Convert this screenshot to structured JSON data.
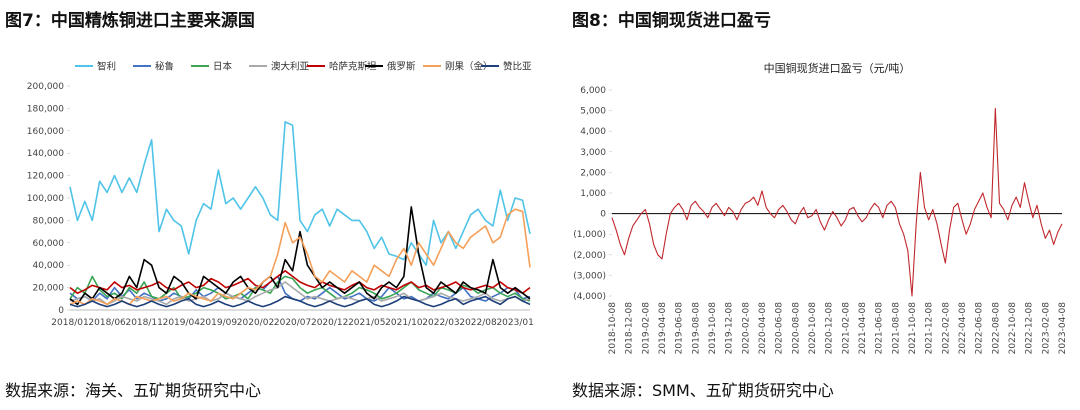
{
  "chart_data": [
    {
      "type": "line",
      "title": "图7：中国精炼铜进口主要来源国",
      "source": "数据来源：海关、五矿期货研究中心",
      "legend": "top",
      "grid": false,
      "categories": [
        "2018/01",
        null,
        null,
        null,
        null,
        "2018/06",
        null,
        null,
        null,
        null,
        "2018/11",
        null,
        null,
        null,
        null,
        "2019/04",
        null,
        null,
        null,
        null,
        "2019/09",
        null,
        null,
        null,
        null,
        "2020/02",
        null,
        null,
        null,
        null,
        "2020/07",
        null,
        null,
        null,
        null,
        "2020/12",
        null,
        null,
        null,
        null,
        "2021/05",
        null,
        null,
        null,
        null,
        "2021/10",
        null,
        null,
        null,
        null,
        "2022/03",
        null,
        null,
        null,
        null,
        "2022/08",
        null,
        null,
        null,
        null,
        "2023/01",
        null,
        null
      ],
      "ylim": [
        0,
        200000
      ],
      "yticks": [
        0,
        {
          "value": 20000,
          "label": "20,000"
        },
        {
          "value": 40000,
          "label": "40,000"
        },
        {
          "value": 60000,
          "label": "60,000"
        },
        {
          "value": 80000,
          "label": "80,000"
        },
        {
          "value": 100000,
          "label": "100,000"
        },
        {
          "value": 120000,
          "label": "120,000"
        },
        {
          "value": 140000,
          "label": "140,000"
        },
        {
          "value": 160000,
          "label": "160,000"
        },
        {
          "value": 180000,
          "label": "180,000"
        },
        {
          "value": 200000,
          "label": "200,000"
        }
      ],
      "series": [
        {
          "name": "智利",
          "color": "#4fc3e8",
          "values": [
            110000,
            80000,
            97000,
            80000,
            115000,
            105000,
            120000,
            105000,
            118000,
            105000,
            130000,
            152000,
            70000,
            90000,
            80000,
            75000,
            50000,
            80000,
            95000,
            90000,
            125000,
            95000,
            100000,
            90000,
            100000,
            110000,
            100000,
            85000,
            80000,
            168000,
            165000,
            80000,
            70000,
            85000,
            90000,
            75000,
            90000,
            85000,
            80000,
            80000,
            70000,
            55000,
            65000,
            50000,
            48000,
            45000,
            60000,
            50000,
            40000,
            80000,
            60000,
            70000,
            55000,
            70000,
            85000,
            90000,
            80000,
            75000,
            107000,
            80000,
            100000,
            98000,
            68000
          ]
        },
        {
          "name": "秘鲁",
          "color": "#4472c4",
          "values": [
            15000,
            10000,
            12000,
            8000,
            15000,
            10000,
            20000,
            12000,
            18000,
            10000,
            15000,
            12000,
            8000,
            10000,
            15000,
            12000,
            10000,
            18000,
            12000,
            15000,
            20000,
            15000,
            12000,
            10000,
            15000,
            20000,
            18000,
            25000,
            30000,
            15000,
            10000,
            8000,
            12000,
            10000,
            15000,
            20000,
            15000,
            10000,
            12000,
            15000,
            10000,
            8000,
            12000,
            20000,
            15000,
            10000,
            12000,
            8000,
            10000,
            15000,
            12000,
            10000,
            15000,
            20000,
            12000,
            10000,
            8000,
            12000,
            15000,
            20000,
            18000,
            10000,
            12000
          ]
        },
        {
          "name": "日本",
          "color": "#3aa655",
          "values": [
            10000,
            20000,
            15000,
            30000,
            18000,
            12000,
            15000,
            10000,
            20000,
            15000,
            25000,
            12000,
            10000,
            15000,
            20000,
            10000,
            12000,
            15000,
            20000,
            18000,
            15000,
            10000,
            12000,
            15000,
            10000,
            20000,
            18000,
            15000,
            25000,
            30000,
            28000,
            20000,
            15000,
            18000,
            20000,
            15000,
            10000,
            12000,
            15000,
            20000,
            18000,
            15000,
            10000,
            12000,
            15000,
            20000,
            25000,
            18000,
            15000,
            12000,
            20000,
            18000,
            15000,
            22000,
            20000,
            15000,
            18000,
            20000,
            15000,
            12000,
            15000,
            10000,
            8000
          ]
        },
        {
          "name": "澳大利亚",
          "color": "#aaaaaa",
          "values": [
            8000,
            10000,
            12000,
            8000,
            10000,
            5000,
            8000,
            12000,
            10000,
            8000,
            12000,
            10000,
            8000,
            5000,
            10000,
            12000,
            8000,
            10000,
            12000,
            8000,
            10000,
            15000,
            12000,
            10000,
            8000,
            12000,
            15000,
            18000,
            20000,
            25000,
            20000,
            15000,
            10000,
            12000,
            10000,
            8000,
            10000,
            12000,
            10000,
            8000,
            10000,
            12000,
            8000,
            10000,
            12000,
            15000,
            10000,
            8000,
            10000,
            12000,
            15000,
            12000,
            10000,
            8000,
            10000,
            12000,
            15000,
            10000,
            8000,
            10000,
            12000,
            8000,
            10000
          ]
        },
        {
          "name": "哈萨克斯坦",
          "color": "#c00000",
          "values": [
            20000,
            15000,
            18000,
            22000,
            20000,
            18000,
            25000,
            20000,
            22000,
            18000,
            20000,
            22000,
            25000,
            20000,
            18000,
            22000,
            25000,
            20000,
            22000,
            28000,
            25000,
            20000,
            22000,
            25000,
            28000,
            22000,
            20000,
            25000,
            30000,
            35000,
            30000,
            25000,
            22000,
            20000,
            25000,
            22000,
            20000,
            18000,
            22000,
            25000,
            20000,
            18000,
            22000,
            20000,
            18000,
            22000,
            25000,
            20000,
            22000,
            18000,
            20000,
            22000,
            25000,
            20000,
            18000,
            20000,
            22000,
            20000,
            25000,
            20000,
            18000,
            15000,
            20000
          ]
        },
        {
          "name": "俄罗斯",
          "color": "#000000",
          "values": [
            10000,
            5000,
            15000,
            10000,
            20000,
            15000,
            10000,
            15000,
            30000,
            20000,
            45000,
            40000,
            20000,
            15000,
            30000,
            25000,
            15000,
            10000,
            30000,
            25000,
            20000,
            15000,
            25000,
            30000,
            20000,
            15000,
            25000,
            30000,
            20000,
            45000,
            35000,
            70000,
            40000,
            30000,
            20000,
            25000,
            20000,
            15000,
            20000,
            25000,
            15000,
            10000,
            20000,
            25000,
            20000,
            30000,
            92000,
            50000,
            20000,
            15000,
            25000,
            20000,
            15000,
            25000,
            20000,
            18000,
            15000,
            45000,
            20000,
            15000,
            20000,
            15000,
            10000
          ]
        },
        {
          "name": "刚果（金）",
          "color": "#f5a05a",
          "values": [
            5000,
            8000,
            5000,
            10000,
            8000,
            5000,
            10000,
            8000,
            5000,
            12000,
            10000,
            8000,
            10000,
            12000,
            8000,
            10000,
            15000,
            12000,
            10000,
            8000,
            15000,
            12000,
            10000,
            15000,
            20000,
            18000,
            25000,
            30000,
            50000,
            78000,
            60000,
            65000,
            50000,
            30000,
            25000,
            35000,
            30000,
            25000,
            35000,
            30000,
            25000,
            40000,
            35000,
            30000,
            45000,
            55000,
            40000,
            60000,
            50000,
            40000,
            55000,
            70000,
            60000,
            55000,
            65000,
            70000,
            75000,
            60000,
            65000,
            85000,
            90000,
            88000,
            38000
          ]
        },
        {
          "name": "赞比亚",
          "color": "#1f3f7a",
          "values": [
            5000,
            3000,
            5000,
            8000,
            5000,
            3000,
            5000,
            8000,
            5000,
            3000,
            5000,
            8000,
            5000,
            3000,
            5000,
            8000,
            10000,
            5000,
            3000,
            5000,
            8000,
            5000,
            3000,
            5000,
            8000,
            5000,
            3000,
            5000,
            8000,
            12000,
            10000,
            8000,
            5000,
            3000,
            5000,
            8000,
            5000,
            3000,
            5000,
            8000,
            10000,
            5000,
            3000,
            5000,
            8000,
            12000,
            10000,
            8000,
            5000,
            3000,
            5000,
            8000,
            10000,
            5000,
            8000,
            10000,
            12000,
            8000,
            5000,
            10000,
            12000,
            8000,
            5000
          ]
        }
      ]
    },
    {
      "type": "line",
      "title": "图8：中国铜现货进口盈亏",
      "subtitle": "中国铜现货进口盈亏（元/吨）",
      "source": "数据来源：SMM、五矿期货研究中心",
      "grid": false,
      "zero_line": true,
      "color": "#c0282d",
      "categories": [
        "2018-10-08",
        null,
        null,
        null,
        "2018-12-08",
        null,
        null,
        null,
        "2019-02-08",
        null,
        null,
        null,
        "2019-04-08",
        null,
        null,
        null,
        "2019-06-08",
        null,
        null,
        null,
        "2019-08-08",
        null,
        null,
        null,
        "2019-10-08",
        null,
        null,
        null,
        "2019-12-08",
        null,
        null,
        null,
        "2020-02-08",
        null,
        null,
        null,
        "2020-04-08",
        null,
        null,
        null,
        "2020-06-08",
        null,
        null,
        null,
        "2020-08-08",
        null,
        null,
        null,
        "2020-10-08",
        null,
        null,
        null,
        "2020-12-08",
        null,
        null,
        null,
        "2021-02-08",
        null,
        null,
        null,
        "2021-04-08",
        null,
        null,
        null,
        "2021-06-08",
        null,
        null,
        null,
        "2021-08-08",
        null,
        null,
        null,
        "2021-10-08",
        null,
        null,
        null,
        "2021-12-08",
        null,
        null,
        null,
        "2022-02-08",
        null,
        null,
        null,
        "2022-04-08",
        null,
        null,
        null,
        "2022-06-08",
        null,
        null,
        null,
        "2022-08-08",
        null,
        null,
        null,
        "2022-10-08",
        null,
        null,
        null,
        "2022-12-08",
        null,
        null,
        null,
        "2023-02-08",
        null,
        null,
        null,
        "2023-04-08"
      ],
      "ylim": [
        -4000,
        6000
      ],
      "yticks": [
        {
          "value": -4000,
          "label": "(4,000)"
        },
        {
          "value": -3000,
          "label": "(3,000)"
        },
        {
          "value": -2000,
          "label": "(2,000)"
        },
        {
          "value": -1000,
          "label": "(1,000)"
        },
        0,
        {
          "value": 1000,
          "label": "1,000"
        },
        {
          "value": 2000,
          "label": "2,000"
        },
        {
          "value": 3000,
          "label": "3,000"
        },
        {
          "value": 4000,
          "label": "4,000"
        },
        {
          "value": 5000,
          "label": "5,000"
        },
        {
          "value": 6000,
          "label": "6,000"
        }
      ],
      "values": [
        -200,
        -800,
        -1500,
        -2000,
        -1200,
        -600,
        -300,
        0,
        200,
        -500,
        -1500,
        -2000,
        -2200,
        -1000,
        0,
        300,
        500,
        200,
        -300,
        400,
        600,
        300,
        100,
        -200,
        300,
        500,
        200,
        -100,
        300,
        100,
        -300,
        200,
        500,
        600,
        800,
        400,
        1100,
        300,
        0,
        -200,
        200,
        400,
        100,
        -300,
        -500,
        0,
        300,
        -200,
        -100,
        200,
        -400,
        -800,
        -300,
        100,
        -200,
        -600,
        -300,
        200,
        300,
        -100,
        -400,
        -200,
        200,
        500,
        300,
        -200,
        400,
        600,
        300,
        -500,
        -1000,
        -1800,
        -4000,
        -500,
        2000,
        300,
        -300,
        200,
        -500,
        -1500,
        -2400,
        -800,
        300,
        500,
        -300,
        -1000,
        -500,
        200,
        600,
        1000,
        300,
        -200,
        5100,
        500,
        200,
        -300,
        400,
        800,
        300,
        1500,
        600,
        -200,
        400,
        -500,
        -1200,
        -800,
        -1500,
        -900,
        -500
      ]
    }
  ]
}
